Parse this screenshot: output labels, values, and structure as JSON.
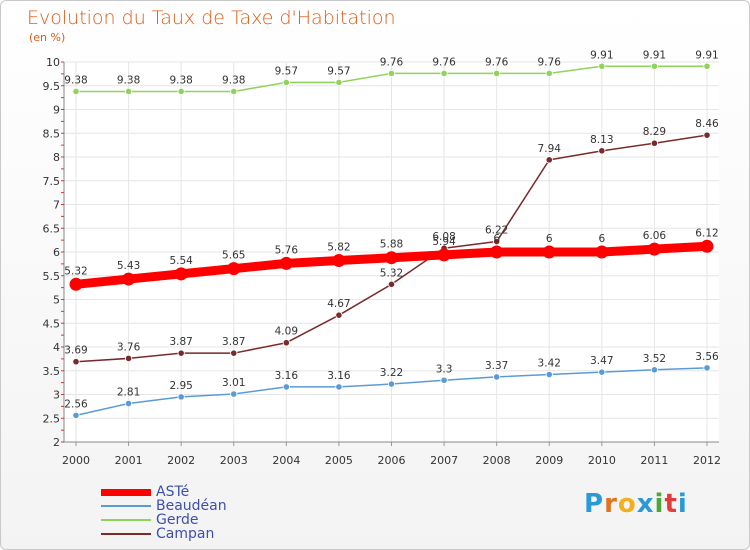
{
  "header": {
    "title": "Evolution du Taux de Taxe d'Habitation",
    "subtitle": "(en %)"
  },
  "logo": {
    "text": "Proxiti",
    "letter_colors": [
      "#2a9ad6",
      "#e2731e",
      "#f2b01e",
      "#2a9ad6",
      "#4aa83a",
      "#e23d3d",
      "#2a9ad6"
    ]
  },
  "chart_data": {
    "type": "line",
    "title": "Evolution du Taux de Taxe d'Habitation",
    "ylabel": "(en %)",
    "xlabel": "",
    "ylim": [
      2,
      10
    ],
    "yticks": [
      "2",
      "2.5",
      "3",
      "3.5",
      "4",
      "4.5",
      "5",
      "5.5",
      "6",
      "6.5",
      "7",
      "7.5",
      "8",
      "8.5",
      "9",
      "9.5",
      "10"
    ],
    "x": [
      "2000",
      "2001",
      "2002",
      "2003",
      "2004",
      "2005",
      "2006",
      "2007",
      "2008",
      "2009",
      "2010",
      "2011",
      "2012"
    ],
    "grid": true,
    "legend_position": "bottom-left",
    "series": [
      {
        "name": "ASTé",
        "color": "#ff0000",
        "values": [
          5.32,
          5.43,
          5.54,
          5.65,
          5.76,
          5.82,
          5.88,
          5.94,
          6,
          6,
          6,
          6.06,
          6.12
        ],
        "labels": [
          "5.32",
          "5.43",
          "5.54",
          "5.65",
          "5.76",
          "5.82",
          "5.88",
          "5.94",
          "6",
          "6",
          "6",
          "6.06",
          "6.12"
        ]
      },
      {
        "name": "Beaudéan",
        "color": "#5b9bd5",
        "values": [
          2.56,
          2.81,
          2.95,
          3.01,
          3.16,
          3.16,
          3.22,
          3.3,
          3.37,
          3.42,
          3.47,
          3.52,
          3.56
        ],
        "labels": [
          "2.56",
          "2.81",
          "2.95",
          "3.01",
          "3.16",
          "3.16",
          "3.22",
          "3.3",
          "3.37",
          "3.42",
          "3.47",
          "3.52",
          "3.56"
        ]
      },
      {
        "name": "Gerde",
        "color": "#8fd45a",
        "values": [
          9.38,
          9.38,
          9.38,
          9.38,
          9.57,
          9.57,
          9.76,
          9.76,
          9.76,
          9.76,
          9.91,
          9.91,
          9.91
        ],
        "labels": [
          "9.38",
          "9.38",
          "9.38",
          "9.38",
          "9.57",
          "9.57",
          "9.76",
          "9.76",
          "9.76",
          "9.76",
          "9.91",
          "9.91",
          "9.91"
        ]
      },
      {
        "name": "Campan",
        "color": "#7a2a2a",
        "values": [
          3.69,
          3.76,
          3.87,
          3.87,
          4.09,
          4.67,
          5.32,
          6.08,
          6.22,
          7.94,
          8.13,
          8.29,
          8.46
        ],
        "labels": [
          "3.69",
          "3.76",
          "3.87",
          "3.87",
          "4.09",
          "4.67",
          "5.32",
          "6.08",
          "6.22",
          "7.94",
          "8.13",
          "8.29",
          "8.46"
        ]
      }
    ]
  }
}
